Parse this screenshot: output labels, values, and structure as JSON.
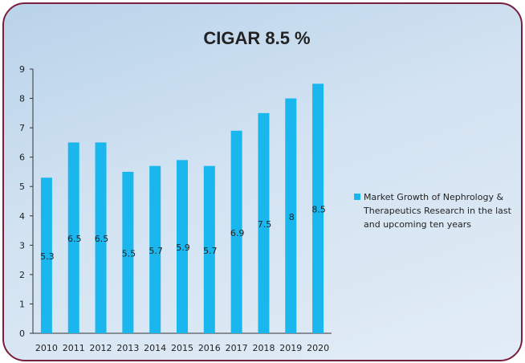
{
  "chart_data": {
    "type": "bar",
    "title": "CIGAR 8.5 %",
    "categories": [
      "2010",
      "2011",
      "2012",
      "2013",
      "2014",
      "2015",
      "2016",
      "2017",
      "2018",
      "2019",
      "2020"
    ],
    "series": [
      {
        "name": "Market Growth of Nephrology & Therapeutics Research in the last and upcoming ten years",
        "values": [
          5.3,
          6.5,
          6.5,
          5.5,
          5.7,
          5.9,
          5.7,
          6.9,
          7.5,
          8,
          8.5
        ],
        "color": "#19b7ee"
      }
    ],
    "data_labels": [
      "5.3",
      "6.5",
      "6.5",
      "5.5",
      "5.7",
      "5.9",
      "5.7",
      "6.9",
      "7.5",
      "8",
      "8.5"
    ],
    "y_ticks": [
      "0",
      "1",
      "2",
      "3",
      "4",
      "5",
      "6",
      "7",
      "8",
      "9"
    ],
    "ylim": [
      0,
      9
    ],
    "xlabel": "",
    "ylabel": "",
    "grid": false,
    "legend_position": "right",
    "colors": {
      "border": "#7a1f3d",
      "background": "#c9dcee",
      "bar": "#19b7ee"
    }
  }
}
